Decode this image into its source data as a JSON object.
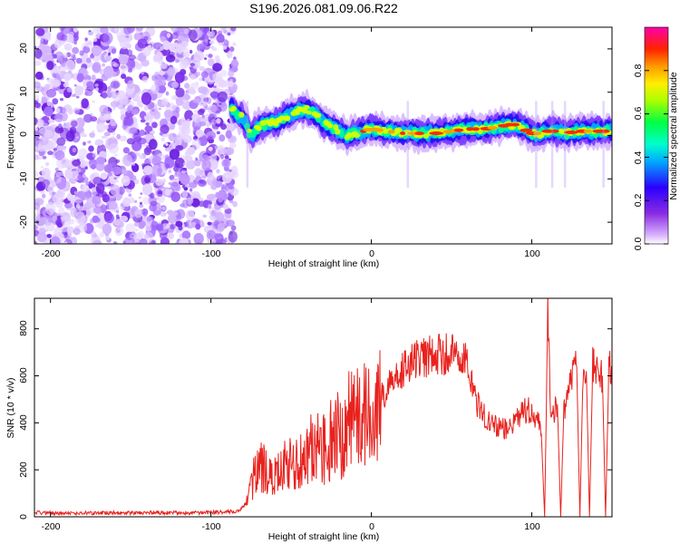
{
  "title": "S196.2026.081.09.06.R22",
  "chart_data": [
    {
      "type": "heatmap",
      "xlabel": "Height of straight line (km)",
      "ylabel": "Frequency (Hz)",
      "xlim": [
        -210,
        150
      ],
      "ylim": [
        -25,
        25
      ],
      "xticks": [
        -200,
        -100,
        0,
        100
      ],
      "yticks": [
        -20,
        -10,
        0,
        10,
        20
      ],
      "noise_region_x": [
        -210,
        -85
      ],
      "ridge": {
        "x": [
          -87,
          -80,
          -75,
          -70,
          -65,
          -60,
          -55,
          -50,
          -45,
          -40,
          -35,
          -30,
          -25,
          -20,
          -15,
          -10,
          -5,
          0,
          10,
          20,
          30,
          40,
          50,
          60,
          70,
          80,
          85,
          90,
          95,
          100,
          105,
          110,
          115,
          120,
          130,
          140,
          150
        ],
        "freq": [
          6,
          4,
          0,
          2,
          3,
          3,
          4,
          5,
          6,
          6,
          5,
          3,
          2,
          1,
          0,
          0.5,
          1,
          1.5,
          1,
          0.5,
          0.5,
          0.5,
          1,
          1.5,
          1.5,
          2,
          2.5,
          2.5,
          1.5,
          0.5,
          0.5,
          1,
          1,
          0.5,
          1,
          1,
          1
        ]
      },
      "colorbar": {
        "label": "Normalized spectral amplitude",
        "range": [
          0.0,
          1.0
        ],
        "ticks": [
          0.0,
          0.2,
          0.4,
          0.6,
          0.8
        ],
        "tick_labels": [
          "0.0",
          "0.2",
          "0.4",
          "0.6",
          "0.8"
        ],
        "colors": [
          "#ffffff",
          "#b266ff",
          "#3300ff",
          "#00ccff",
          "#00ff66",
          "#ccff00",
          "#ffcc00",
          "#ff3300",
          "#ff0099"
        ]
      }
    },
    {
      "type": "line",
      "xlabel": "Height of straight line (km)",
      "ylabel": "SNR (10 * v/v)",
      "xlim": [
        -210,
        150
      ],
      "ylim": [
        0,
        930
      ],
      "xticks": [
        -200,
        -100,
        0,
        100
      ],
      "yticks": [
        0,
        200,
        400,
        600,
        800
      ],
      "color": "#e8221e",
      "series": [
        {
          "name": "SNR",
          "x": [
            -210,
            -190,
            -170,
            -150,
            -130,
            -110,
            -90,
            -82,
            -78,
            -74,
            -70,
            -66,
            -62,
            -58,
            -54,
            -50,
            -46,
            -42,
            -38,
            -34,
            -30,
            -26,
            -22,
            -18,
            -14,
            -10,
            -6,
            -2,
            2,
            6,
            10,
            14,
            18,
            22,
            26,
            30,
            35,
            40,
            45,
            50,
            55,
            60,
            62,
            64,
            66,
            68,
            70,
            75,
            80,
            85,
            90,
            95,
            100,
            104,
            106,
            108,
            110,
            112,
            114,
            116,
            118,
            120,
            122,
            124,
            126,
            128,
            130,
            132,
            134,
            136,
            138,
            140,
            142,
            144,
            146,
            148,
            150
          ],
          "y": [
            18,
            15,
            17,
            16,
            18,
            17,
            20,
            25,
            60,
            150,
            230,
            200,
            160,
            180,
            230,
            250,
            220,
            240,
            280,
            300,
            280,
            320,
            350,
            330,
            400,
            430,
            420,
            450,
            470,
            500,
            540,
            580,
            610,
            640,
            660,
            670,
            680,
            690,
            690,
            700,
            690,
            680,
            600,
            520,
            480,
            450,
            430,
            400,
            380,
            370,
            400,
            450,
            460,
            400,
            350,
            0,
            880,
            420,
            450,
            480,
            0,
            450,
            480,
            560,
            620,
            640,
            0,
            640,
            620,
            0,
            650,
            630,
            640,
            600,
            0,
            620,
            640
          ]
        }
      ]
    }
  ]
}
